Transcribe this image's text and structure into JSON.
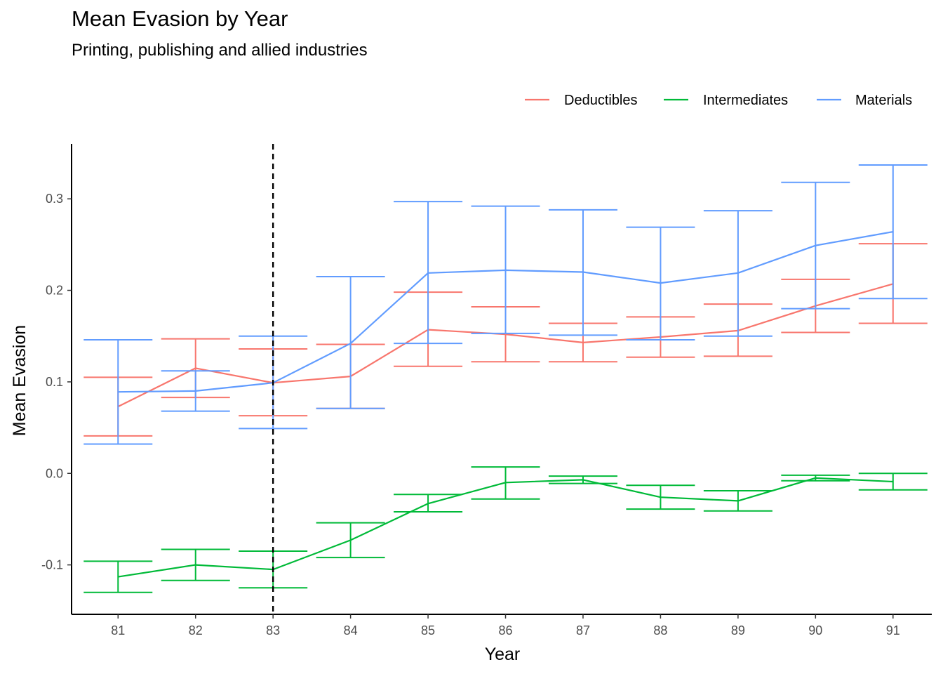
{
  "title": "Mean Evasion by Year",
  "subtitle": "Printing, publishing and allied industries",
  "chart_data": {
    "type": "line",
    "title": "Mean Evasion by Year",
    "subtitle": "Printing, publishing and allied industries",
    "xlabel": "Year",
    "ylabel": "Mean Evasion",
    "x": [
      81,
      82,
      83,
      84,
      85,
      86,
      87,
      88,
      89,
      90,
      91
    ],
    "x_tick_labels": [
      "81",
      "82",
      "83",
      "84",
      "85",
      "86",
      "87",
      "88",
      "89",
      "90",
      "91"
    ],
    "y_ticks": [
      -0.1,
      0.0,
      0.1,
      0.2,
      0.3
    ],
    "y_tick_labels": [
      "-0.1",
      "0.0",
      "0.1",
      "0.2",
      "0.3"
    ],
    "xlim": [
      80.4,
      91.5
    ],
    "ylim": [
      -0.154,
      0.36
    ],
    "vline": {
      "x": 83,
      "style": "dashed",
      "color": "#000000"
    },
    "grid": false,
    "legend_position": "top-right",
    "error_bars": true,
    "series": [
      {
        "name": "Deductibles",
        "color": "#F8766D",
        "values": [
          0.073,
          0.115,
          0.099,
          0.106,
          0.157,
          0.152,
          0.143,
          0.149,
          0.156,
          0.183,
          0.207
        ],
        "lower": [
          0.041,
          0.083,
          0.063,
          0.071,
          0.117,
          0.122,
          0.122,
          0.127,
          0.128,
          0.154,
          0.164
        ],
        "upper": [
          0.105,
          0.147,
          0.136,
          0.141,
          0.198,
          0.182,
          0.164,
          0.171,
          0.185,
          0.212,
          0.251
        ]
      },
      {
        "name": "Intermediates",
        "color": "#00BA38",
        "values": [
          -0.113,
          -0.1,
          -0.105,
          -0.073,
          -0.033,
          -0.01,
          -0.007,
          -0.026,
          -0.03,
          -0.005,
          -0.009
        ],
        "lower": [
          -0.13,
          -0.117,
          -0.125,
          -0.092,
          -0.042,
          -0.028,
          -0.011,
          -0.039,
          -0.041,
          -0.008,
          -0.018
        ],
        "upper": [
          -0.096,
          -0.083,
          -0.085,
          -0.054,
          -0.023,
          0.007,
          -0.003,
          -0.013,
          -0.019,
          -0.002,
          0.0
        ]
      },
      {
        "name": "Materials",
        "color": "#619CFF",
        "values": [
          0.089,
          0.09,
          0.099,
          0.142,
          0.219,
          0.222,
          0.22,
          0.208,
          0.219,
          0.249,
          0.264
        ],
        "lower": [
          0.032,
          0.068,
          0.049,
          0.071,
          0.142,
          0.153,
          0.151,
          0.146,
          0.15,
          0.18,
          0.191
        ],
        "upper": [
          0.146,
          0.112,
          0.15,
          0.215,
          0.297,
          0.292,
          0.288,
          0.269,
          0.287,
          0.318,
          0.337
        ]
      }
    ]
  }
}
